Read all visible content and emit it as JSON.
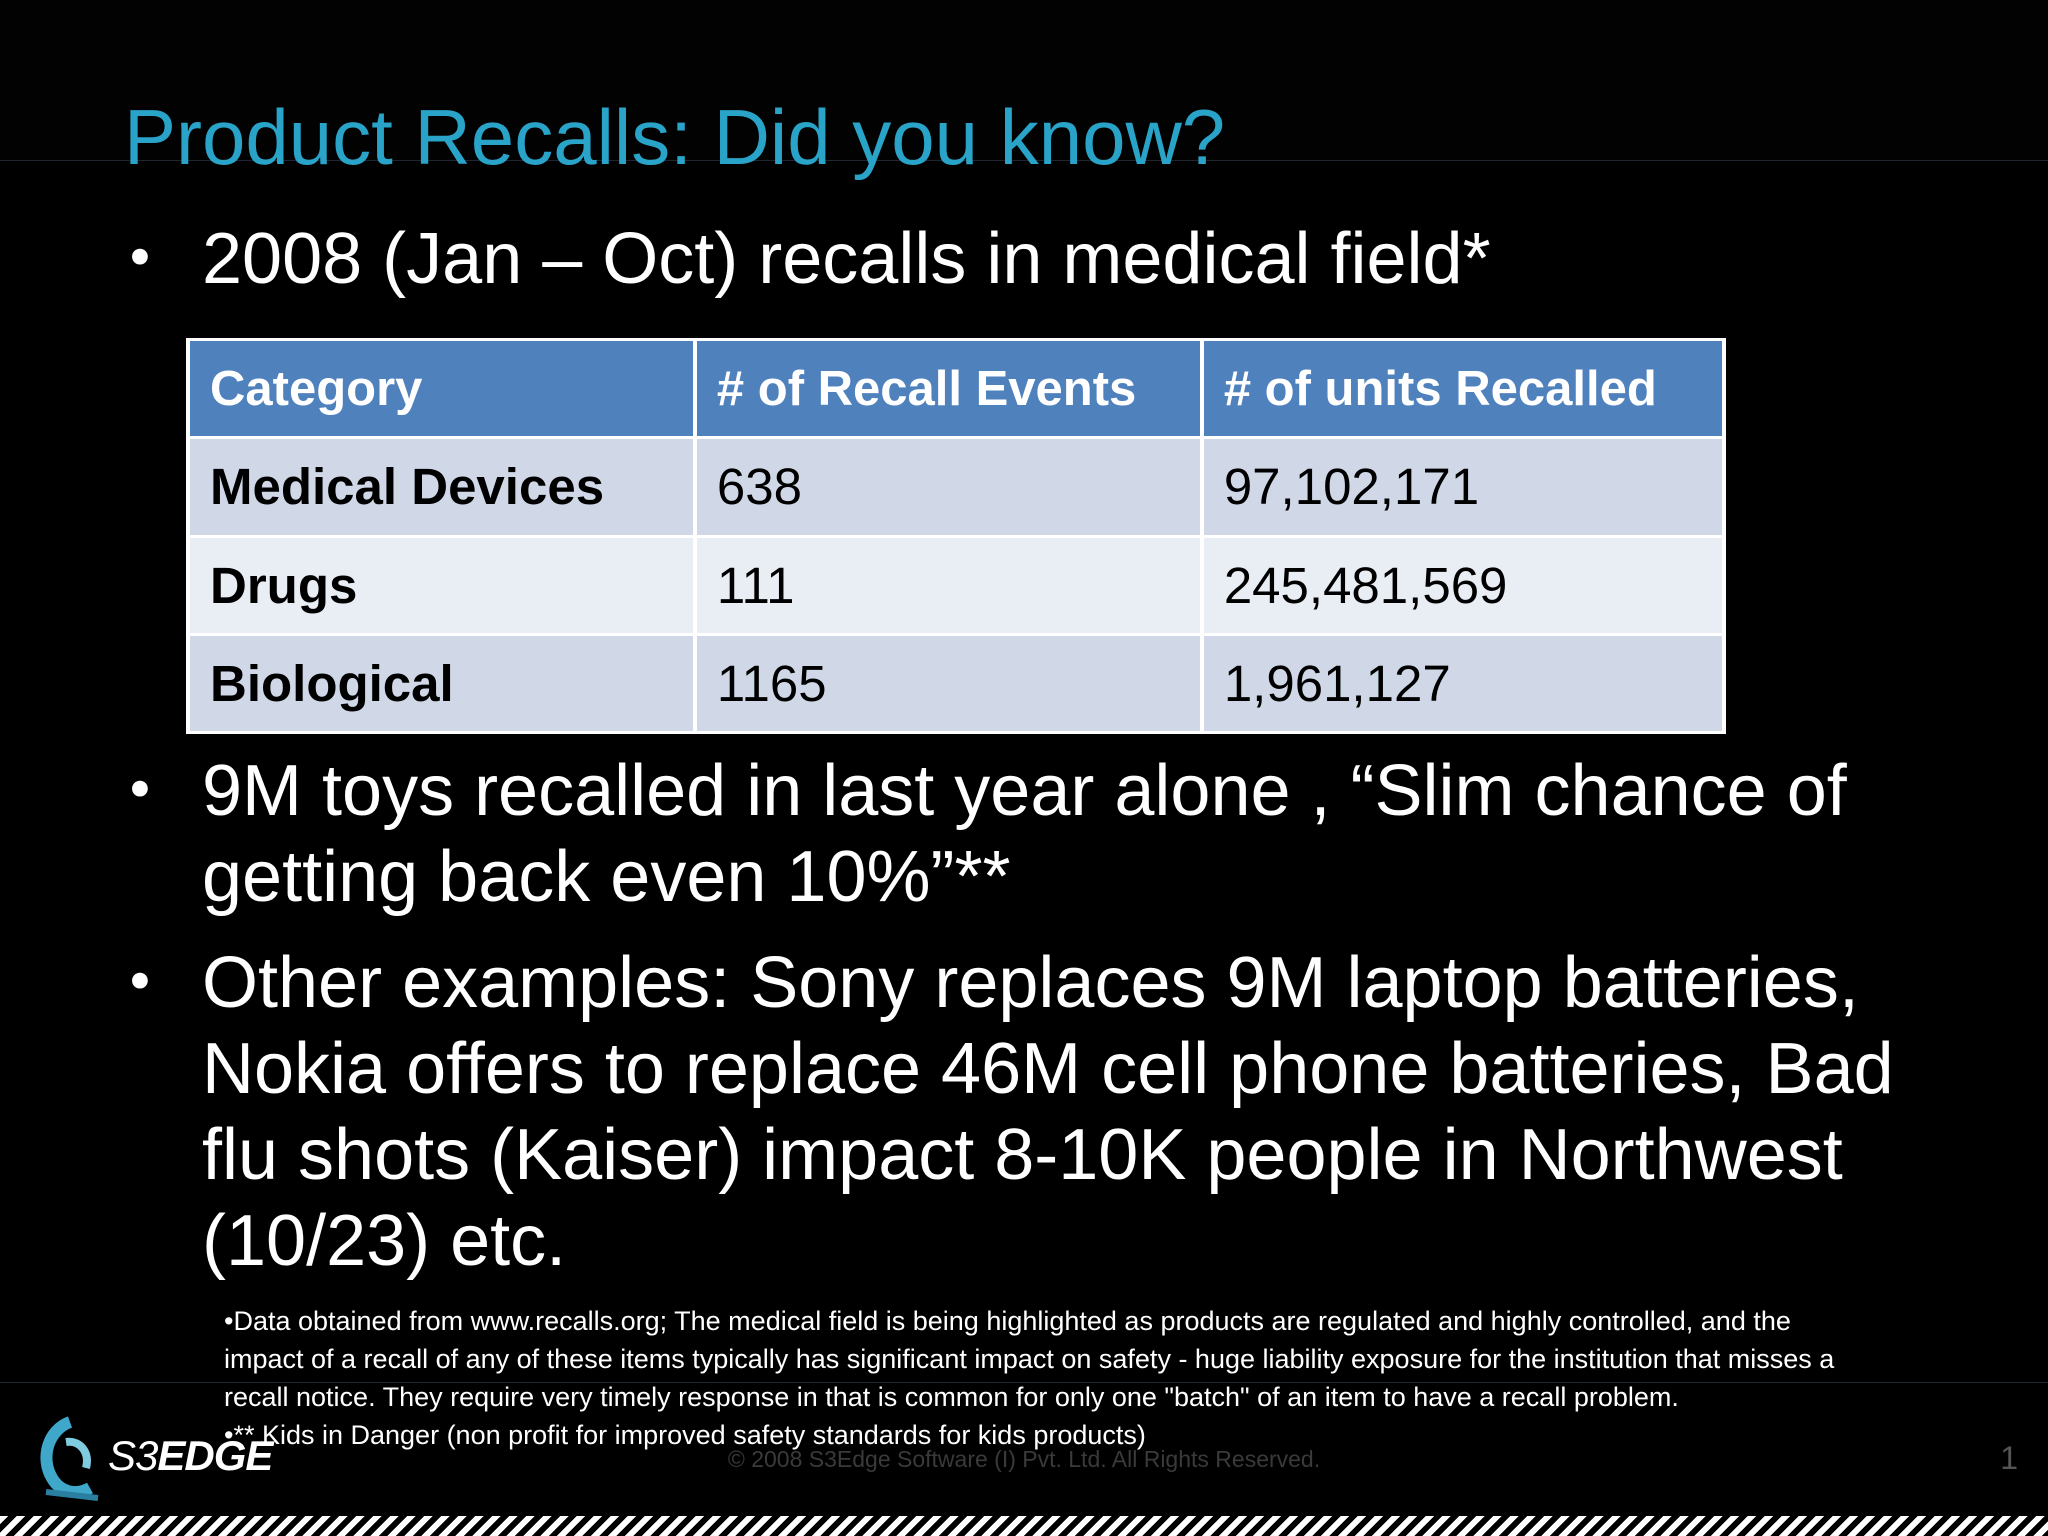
{
  "slide": {
    "title": "Product Recalls: Did you know?",
    "bullets": [
      "2008 (Jan – Oct) recalls in medical field*",
      "9M toys recalled in last year alone , “Slim chance of",
      "getting back even 10%”**",
      "Other examples: Sony replaces 9M laptop batteries,",
      "Nokia offers to replace 46M cell phone batteries, Bad",
      "flu shots (Kaiser) impact 8-10K people in Northwest",
      "(10/23) etc."
    ],
    "bullet_glyph": "•"
  },
  "table": {
    "headers": [
      "Category",
      "# of Recall Events",
      "# of units Recalled"
    ],
    "rows": [
      [
        "Medical Devices",
        "638",
        "97,102,171"
      ],
      [
        "Drugs",
        "111",
        "245,481,569"
      ],
      [
        "Biological",
        "1165",
        "1,961,127"
      ]
    ]
  },
  "notes": [
    "•Data obtained from www.recalls.org; The medical field is being highlighted as products are regulated and highly controlled,  and the",
    "impact of a recall of any of these items typically has significant impact on safety - huge liability exposure for the institution that misses a",
    "recall notice.  They require very timely response in that is common for only one \"batch\" of an item to have a recall problem.",
    "•** Kids in Danger (non profit for improved safety standards for kids products)"
  ],
  "footer": {
    "copyright": "© 2008 S3Edge Software (I) Pvt. Ltd. All Rights Reserved.",
    "page_number": "1",
    "logo_text_light": "S3",
    "logo_text_bold": "EDGE"
  },
  "colors": {
    "title": "#2aa3c8",
    "table_header": "#4f81bd",
    "row_odd": "#d0d8e8",
    "row_even": "#e9edf4"
  }
}
